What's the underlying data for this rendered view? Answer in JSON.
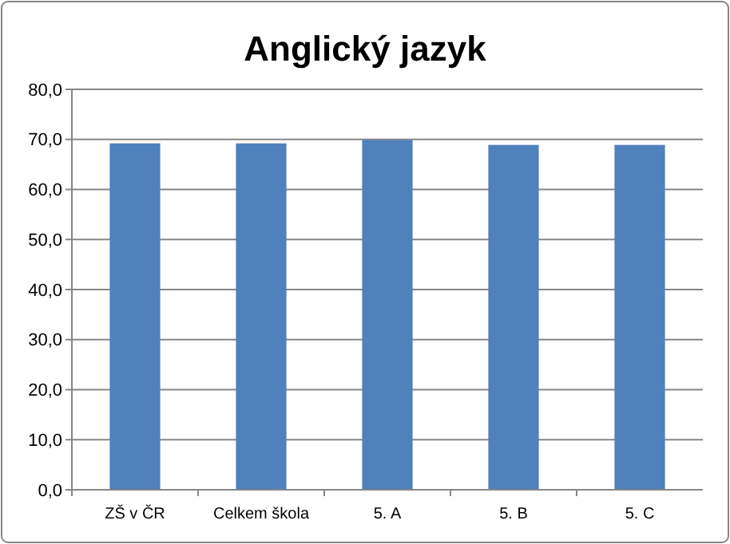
{
  "chart_data": {
    "type": "bar",
    "title": "Anglický jazyk",
    "categories": [
      "ZŠ v ČR",
      "Celkem škola",
      "5. A",
      "5. B",
      "5. C"
    ],
    "values": [
      69.2,
      69.2,
      69.9,
      68.9,
      68.9
    ],
    "color": "#4f81bd",
    "ylim": [
      0,
      80
    ],
    "yticks": [
      {
        "value": 0,
        "label": "0,0"
      },
      {
        "value": 10,
        "label": "10,0"
      },
      {
        "value": 20,
        "label": "20,0"
      },
      {
        "value": 30,
        "label": "30,0"
      },
      {
        "value": 40,
        "label": "40,0"
      },
      {
        "value": 50,
        "label": "50,0"
      },
      {
        "value": 60,
        "label": "60,0"
      },
      {
        "value": 70,
        "label": "70,0"
      },
      {
        "value": 80,
        "label": "80,0"
      }
    ],
    "grid": "y"
  }
}
